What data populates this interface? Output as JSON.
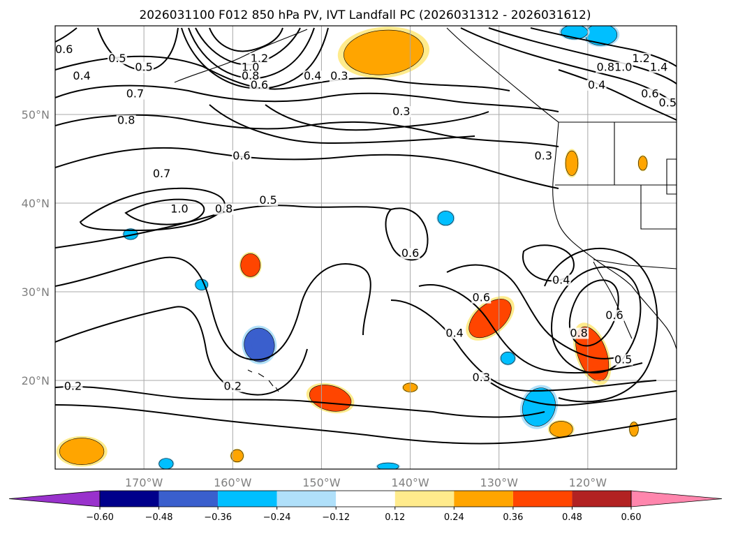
{
  "title": "2026031100 F012 850 hPa PV, IVT Landfall PC (2026031312 - 2026031612)",
  "map": {
    "lon_range": [
      -180,
      -110
    ],
    "lat_range": [
      10,
      60
    ],
    "lat_ticks": [
      {
        "lat": 50,
        "label": "50°N"
      },
      {
        "lat": 40,
        "label": "40°N"
      },
      {
        "lat": 30,
        "label": "30°N"
      },
      {
        "lat": 20,
        "label": "20°N"
      }
    ],
    "lon_ticks": [
      {
        "lon": -170,
        "label": "170°W"
      },
      {
        "lon": -160,
        "label": "160°W"
      },
      {
        "lon": -150,
        "label": "150°W"
      },
      {
        "lon": -140,
        "label": "140°W"
      },
      {
        "lon": -130,
        "label": "130°W"
      },
      {
        "lon": -120,
        "label": "120°W"
      }
    ],
    "gridlines": true,
    "contour_labels": [
      {
        "text": "0.6",
        "lon": -179,
        "lat": 57
      },
      {
        "text": "0.5",
        "lon": -173,
        "lat": 56
      },
      {
        "text": "0.5",
        "lon": -170,
        "lat": 55
      },
      {
        "text": "0.4",
        "lon": -177,
        "lat": 54
      },
      {
        "text": "0.7",
        "lon": -171,
        "lat": 52
      },
      {
        "text": "0.8",
        "lon": -172,
        "lat": 49
      },
      {
        "text": "1.2",
        "lon": -157,
        "lat": 56
      },
      {
        "text": "1.0",
        "lon": -158,
        "lat": 55
      },
      {
        "text": "0.8",
        "lon": -158,
        "lat": 54
      },
      {
        "text": "0.6",
        "lon": -157,
        "lat": 53
      },
      {
        "text": "0.4",
        "lon": -151,
        "lat": 54
      },
      {
        "text": "0.3",
        "lon": -148,
        "lat": 54
      },
      {
        "text": "0.3",
        "lon": -141,
        "lat": 50
      },
      {
        "text": "0.6",
        "lon": -159,
        "lat": 45
      },
      {
        "text": "0.7",
        "lon": -168,
        "lat": 43
      },
      {
        "text": "1.0",
        "lon": -166,
        "lat": 39
      },
      {
        "text": "0.8",
        "lon": -161,
        "lat": 39
      },
      {
        "text": "0.5",
        "lon": -156,
        "lat": 40
      },
      {
        "text": "0.6",
        "lon": -140,
        "lat": 34
      },
      {
        "text": "0.6",
        "lon": -132,
        "lat": 29
      },
      {
        "text": "0.4",
        "lon": -135,
        "lat": 25
      },
      {
        "text": "0.3",
        "lon": -132,
        "lat": 20
      },
      {
        "text": "0.4",
        "lon": -123,
        "lat": 31
      },
      {
        "text": "0.3",
        "lon": -125,
        "lat": 45
      },
      {
        "text": "0.8",
        "lon": -121,
        "lat": 25
      },
      {
        "text": "0.6",
        "lon": -117,
        "lat": 27
      },
      {
        "text": "0.5",
        "lon": -116,
        "lat": 22
      },
      {
        "text": "0.2",
        "lon": -178,
        "lat": 19
      },
      {
        "text": "0.2",
        "lon": -160,
        "lat": 19
      },
      {
        "text": "1.4",
        "lon": -112,
        "lat": 55
      },
      {
        "text": "1.2",
        "lon": -114,
        "lat": 56
      },
      {
        "text": "1.0",
        "lon": -116,
        "lat": 55
      },
      {
        "text": "0.8",
        "lon": -118,
        "lat": 55
      },
      {
        "text": "0.4",
        "lon": -119,
        "lat": 53
      },
      {
        "text": "0.6",
        "lon": -113,
        "lat": 52
      },
      {
        "text": "0.5",
        "lon": -111,
        "lat": 51
      }
    ],
    "ivt_pc_patches": [
      {
        "lon": -143,
        "lat": 57,
        "rx": 4.5,
        "ry": 2.5,
        "rot": -5,
        "value": 0.3
      },
      {
        "lon": -158,
        "lat": 33,
        "rx": 1.1,
        "ry": 1.3,
        "rot": 0,
        "value": 0.38
      },
      {
        "lon": -131,
        "lat": 27,
        "rx": 2.8,
        "ry": 1.6,
        "rot": -40,
        "value": 0.4
      },
      {
        "lon": -119.5,
        "lat": 23,
        "rx": 1.6,
        "ry": 3.2,
        "rot": -20,
        "value": 0.4
      },
      {
        "lon": -149,
        "lat": 18,
        "rx": 2.4,
        "ry": 1.4,
        "rot": 15,
        "value": 0.38
      },
      {
        "lon": -177,
        "lat": 12,
        "rx": 2.5,
        "ry": 1.5,
        "rot": 0,
        "value": 0.3
      },
      {
        "lon": -123,
        "lat": 14.5,
        "rx": 1.3,
        "ry": 0.9,
        "rot": 0,
        "value": 0.25
      },
      {
        "lon": -157,
        "lat": 24,
        "rx": 1.7,
        "ry": 1.9,
        "rot": -10,
        "value": -0.38
      },
      {
        "lon": -125.5,
        "lat": 17,
        "rx": 1.8,
        "ry": 2.2,
        "rot": 20,
        "value": -0.35
      },
      {
        "lon": -118.5,
        "lat": 59,
        "rx": 1.8,
        "ry": 1.2,
        "rot": 0,
        "value": -0.3
      },
      {
        "lon": -121.5,
        "lat": 59.3,
        "rx": 1.5,
        "ry": 0.8,
        "rot": 0,
        "value": -0.3
      },
      {
        "lon": -121.8,
        "lat": 44.5,
        "rx": 0.7,
        "ry": 1.4,
        "rot": 0,
        "value": 0.26
      },
      {
        "lon": -136,
        "lat": 38.3,
        "rx": 0.9,
        "ry": 0.8,
        "rot": 0,
        "value": -0.3
      },
      {
        "lon": -171.5,
        "lat": 36.5,
        "rx": 0.8,
        "ry": 0.6,
        "rot": 0,
        "value": -0.26
      },
      {
        "lon": -159.5,
        "lat": 11.5,
        "rx": 0.7,
        "ry": 0.7,
        "rot": 0,
        "value": 0.26
      },
      {
        "lon": -167.5,
        "lat": 10.6,
        "rx": 0.8,
        "ry": 0.6,
        "rot": 0,
        "value": -0.26
      },
      {
        "lon": -142.5,
        "lat": 10.3,
        "rx": 1.2,
        "ry": 0.4,
        "rot": 0,
        "value": -0.26
      },
      {
        "lon": -129,
        "lat": 22.5,
        "rx": 0.8,
        "ry": 0.7,
        "rot": 0,
        "value": -0.26
      },
      {
        "lon": -140,
        "lat": 19.2,
        "rx": 0.8,
        "ry": 0.5,
        "rot": 0,
        "value": 0.26
      },
      {
        "lon": -163.5,
        "lat": 30.8,
        "rx": 0.7,
        "ry": 0.6,
        "rot": 0,
        "value": -0.26
      },
      {
        "lon": -114.8,
        "lat": 14.5,
        "rx": 0.5,
        "ry": 0.8,
        "rot": 0,
        "value": 0.26
      },
      {
        "lon": -113.8,
        "lat": 44.5,
        "rx": 0.5,
        "ry": 0.8,
        "rot": 0,
        "value": 0.26
      }
    ]
  },
  "colorbar": {
    "colors": [
      "#9932cc",
      "#00008b",
      "#3a5fcd",
      "#00bfff",
      "#b0e0fa",
      "#ffffff",
      "#ffeb8c",
      "#ffa500",
      "#ff4500",
      "#b22222",
      "#ff86ad"
    ],
    "ticks": [
      "−0.60",
      "−0.48",
      "−0.36",
      "−0.24",
      "−0.12",
      "0.12",
      "0.24",
      "0.36",
      "0.48",
      "0.60"
    ],
    "levels": [
      -0.6,
      -0.48,
      -0.36,
      -0.24,
      -0.12,
      0.12,
      0.24,
      0.36,
      0.48,
      0.6
    ]
  }
}
